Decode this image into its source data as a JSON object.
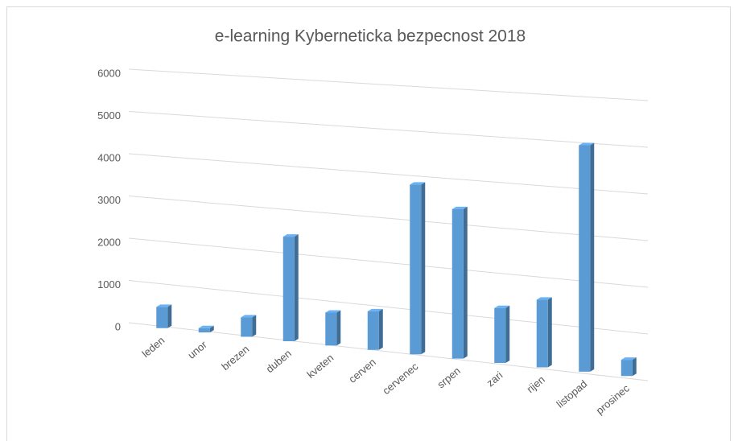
{
  "chart_data": {
    "type": "bar",
    "title": "e-learning Kyberneticka bezpecnost 2018",
    "categories": [
      "leden",
      "unor",
      "brezen",
      "duben",
      "kveten",
      "cerven",
      "cervenec",
      "srpen",
      "zari",
      "rijen",
      "listopad",
      "prosinec"
    ],
    "values": [
      500,
      100,
      450,
      2400,
      750,
      870,
      3800,
      3320,
      1210,
      1480,
      4910,
      350
    ],
    "color": "#5b9bd5",
    "ylim": [
      0,
      6000
    ],
    "yticks": [
      0,
      1000,
      2000,
      3000,
      4000,
      5000,
      6000
    ],
    "grid": true
  }
}
